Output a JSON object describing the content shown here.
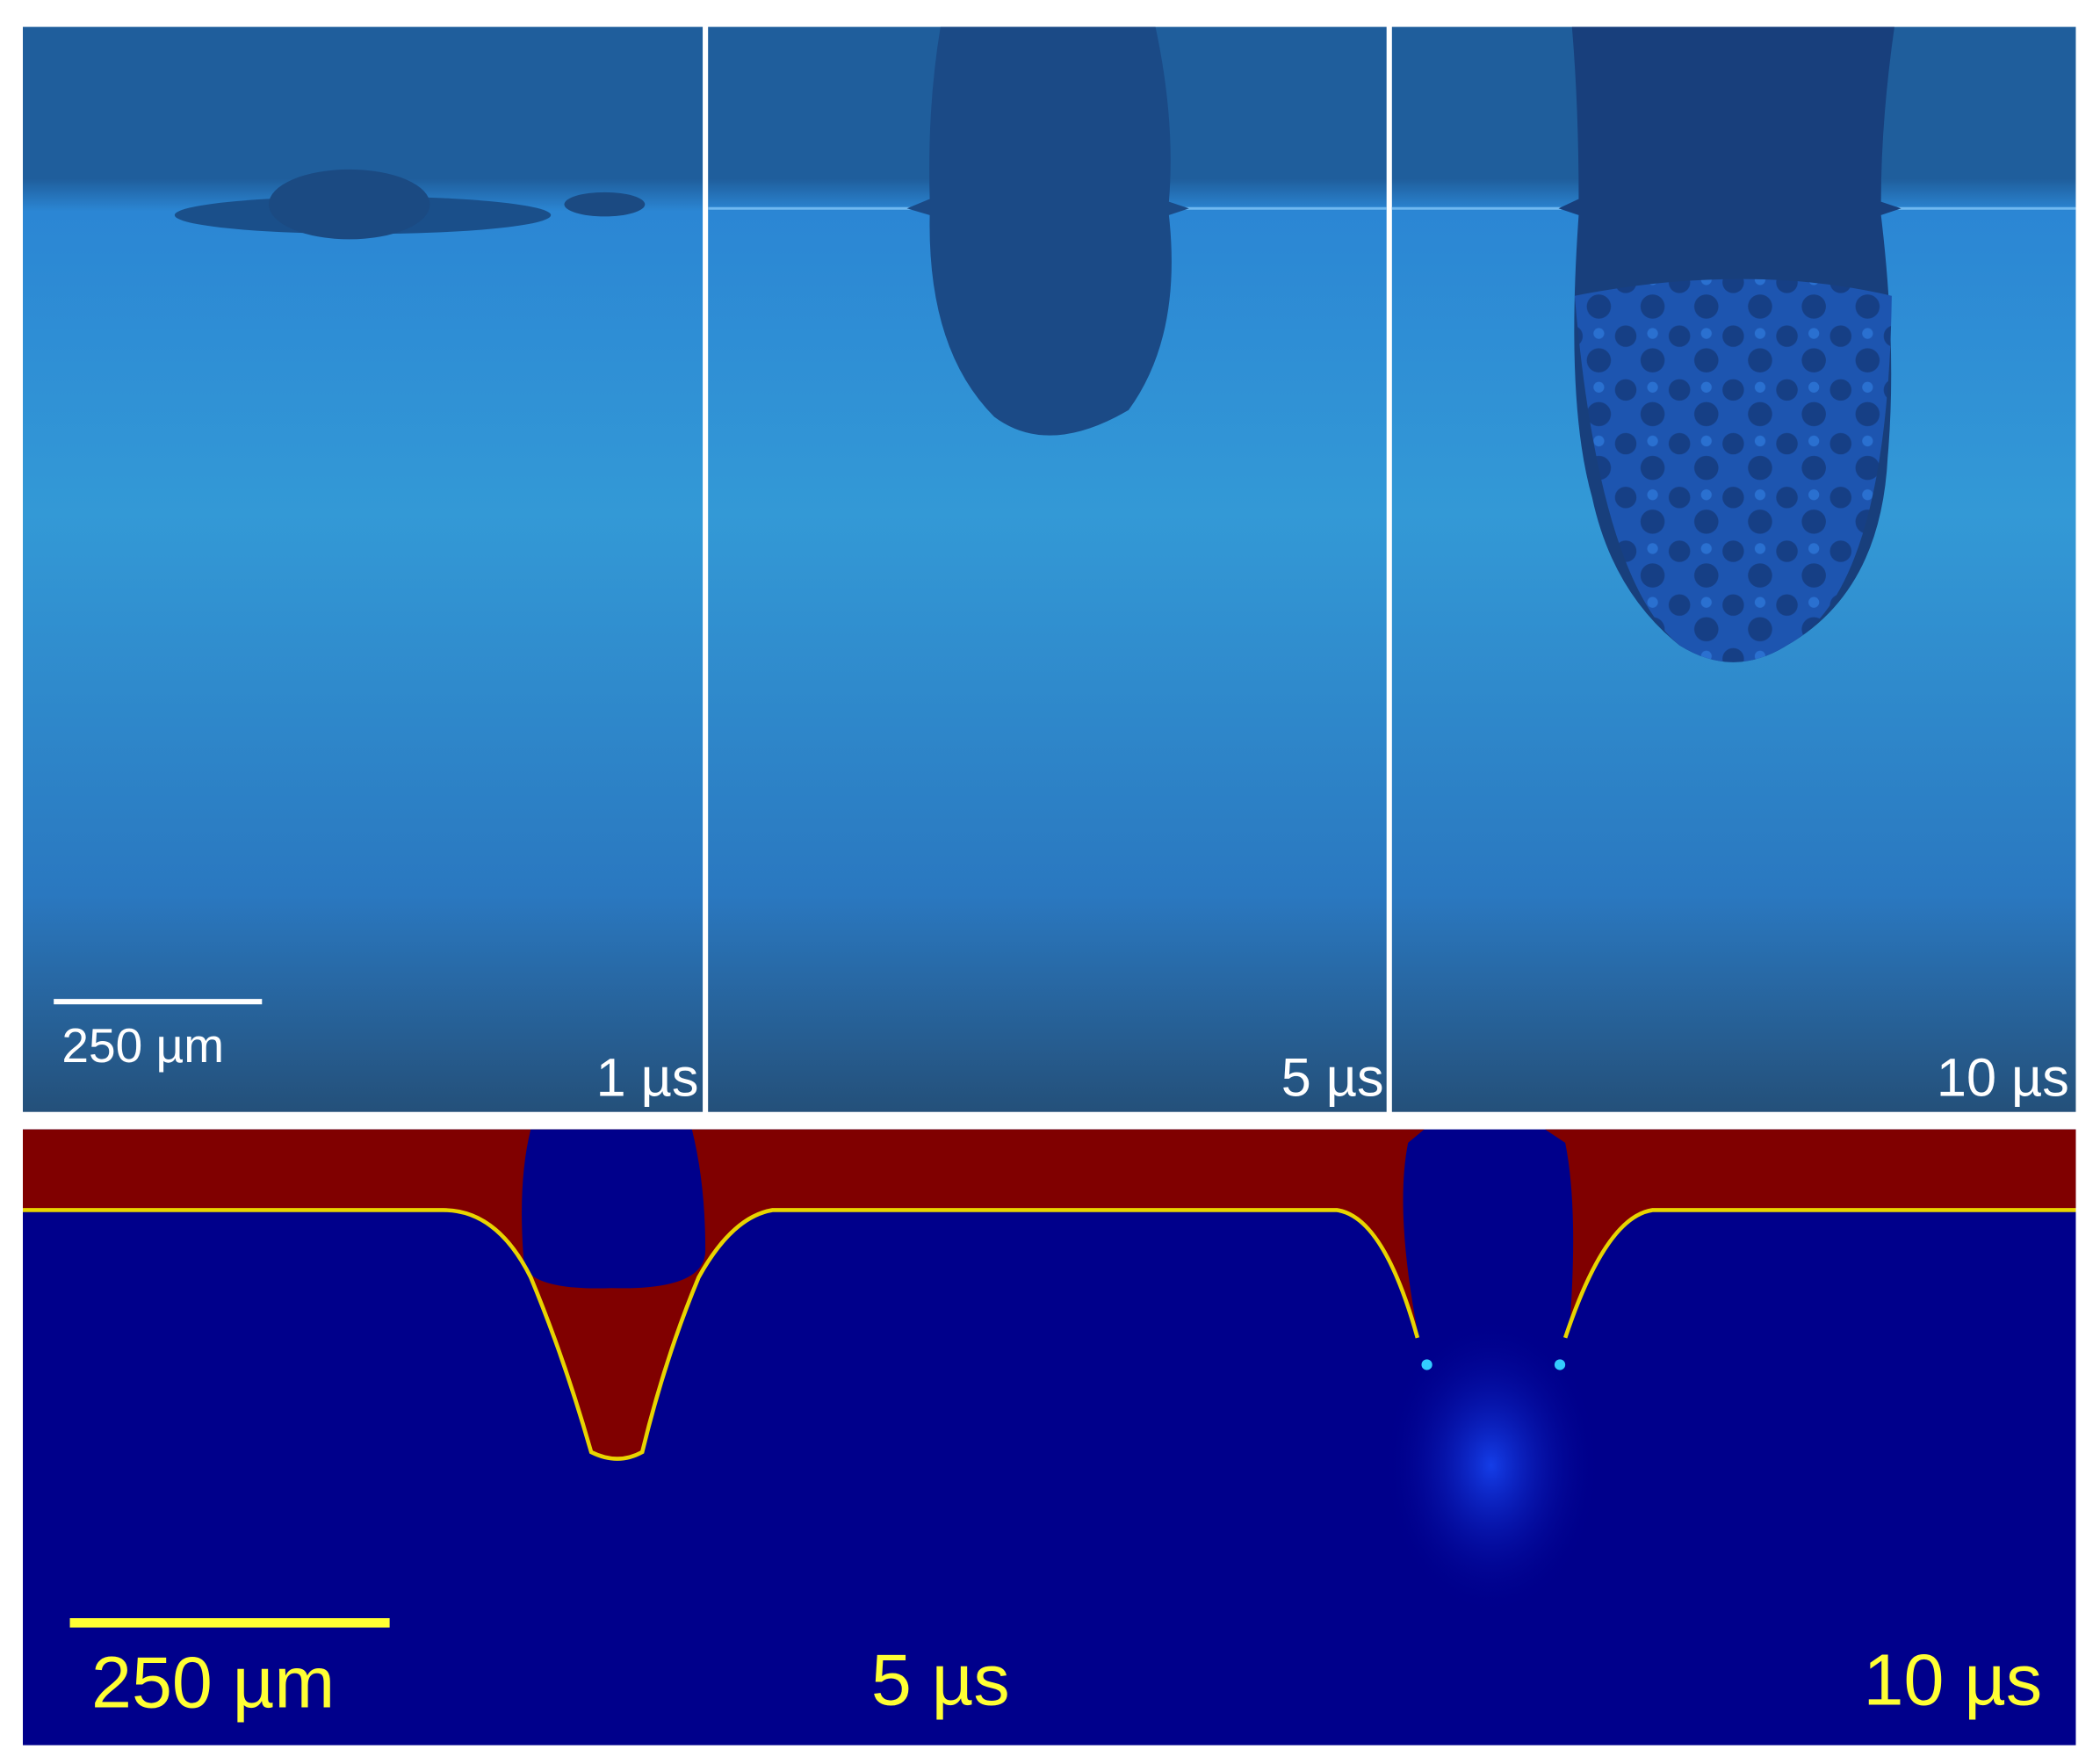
{
  "top_panels": [
    {
      "time": "1 µs"
    },
    {
      "time": "5 µs"
    },
    {
      "time": "10 µs"
    }
  ],
  "top_scale_bar": "250 µm",
  "bottom_panel": {
    "scale_bar": "250 µm",
    "times": [
      "5 µs",
      "10 µs"
    ]
  }
}
